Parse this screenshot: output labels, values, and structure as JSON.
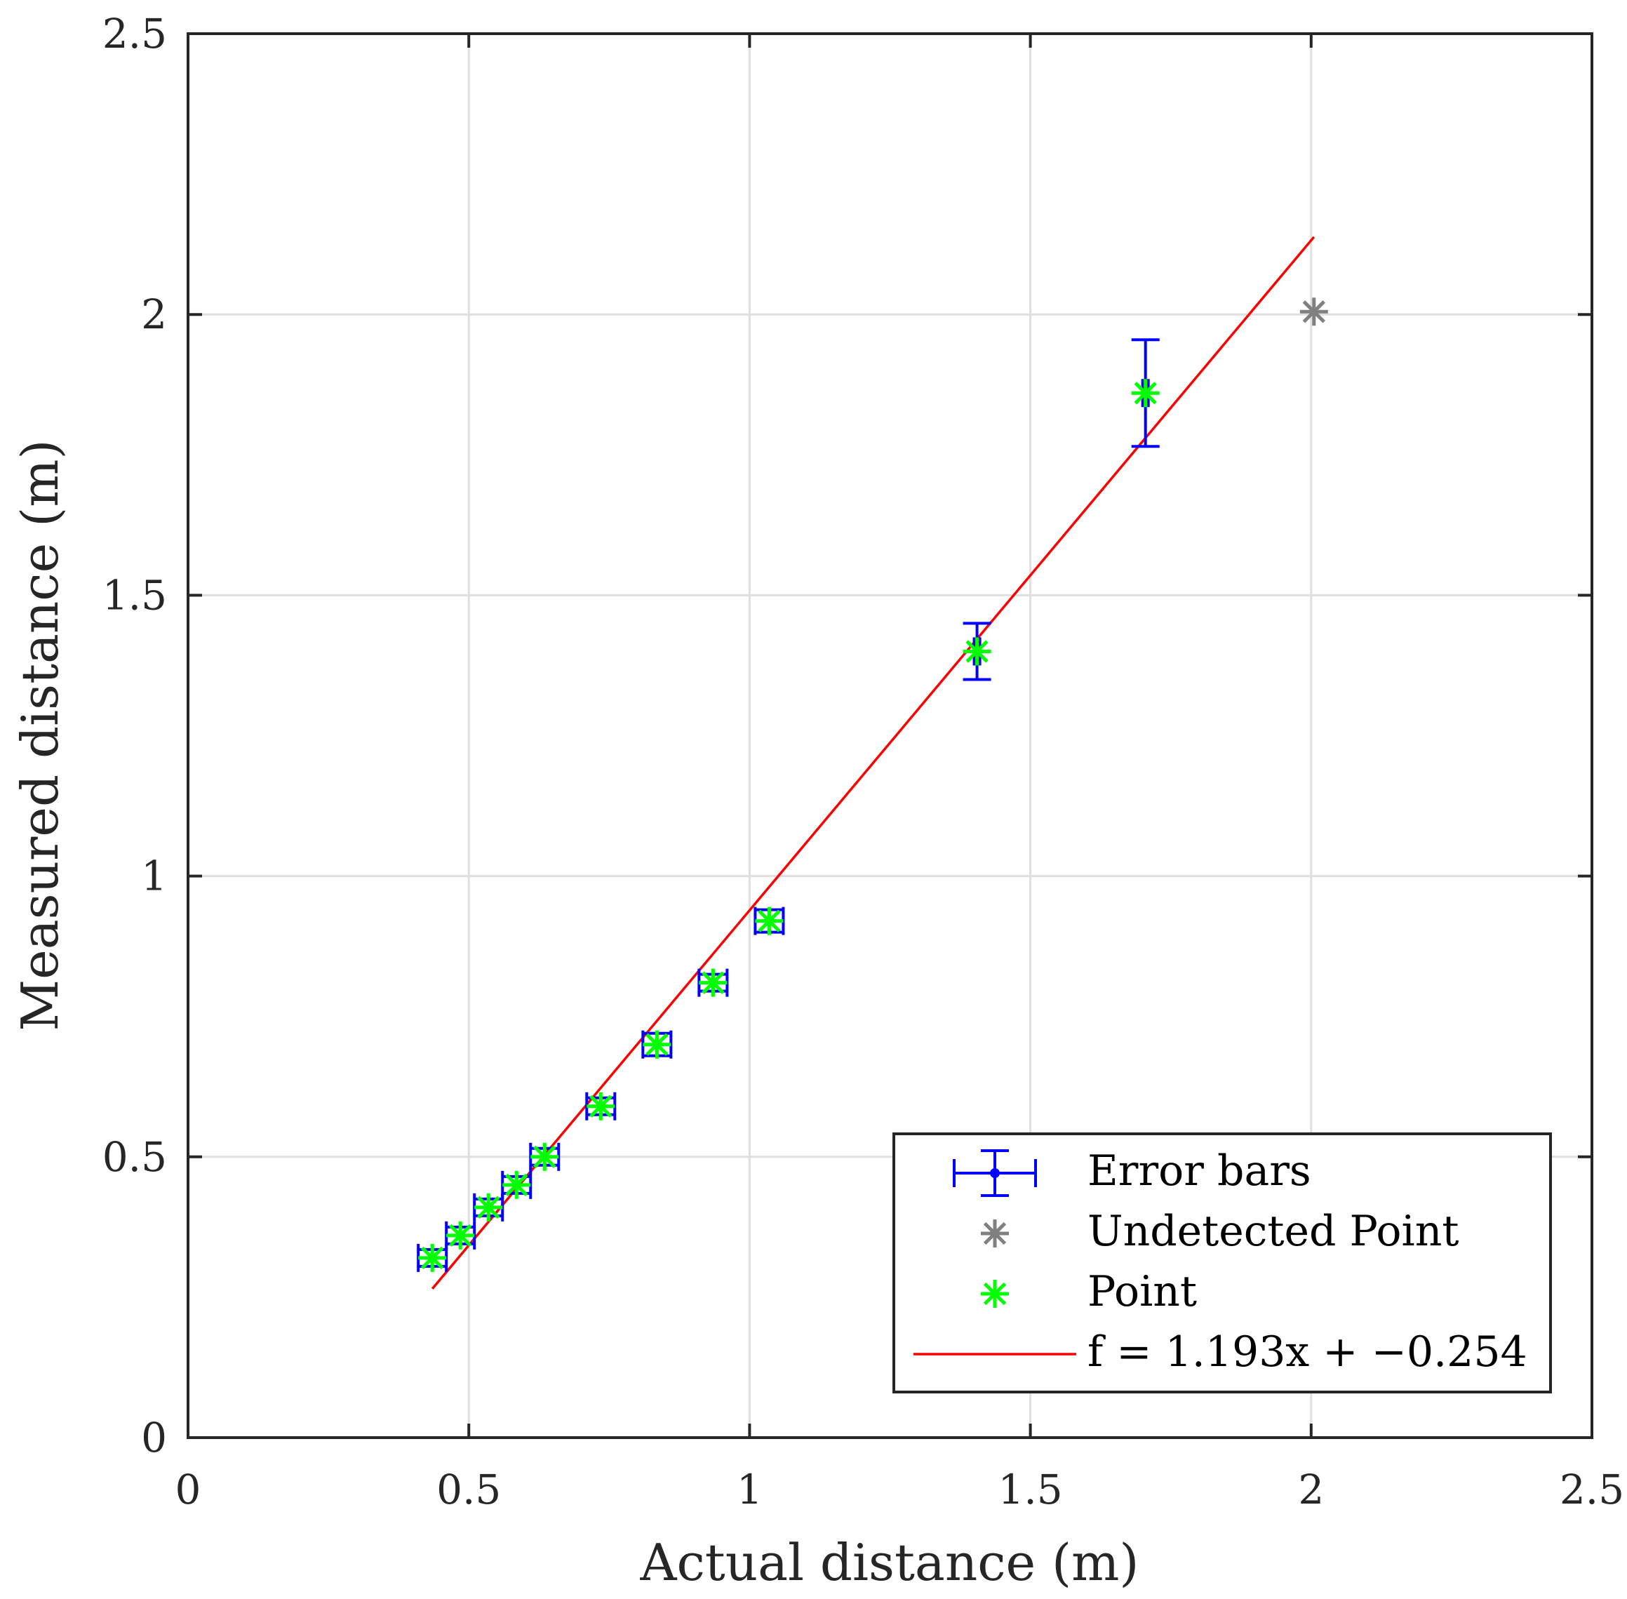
{
  "chart_data": {
    "type": "scatter",
    "xlabel": "Actual distance (m)",
    "ylabel": "Measured distance (m)",
    "xlim": [
      0,
      2.5
    ],
    "ylim": [
      0,
      2.5
    ],
    "grid": true,
    "x_ticks": [
      "0",
      "0.5",
      "1",
      "1.5",
      "2",
      "2.5"
    ],
    "y_ticks": [
      "0",
      "0.5",
      "1",
      "1.5",
      "2",
      "2.5"
    ],
    "legend_position": "bottom-right",
    "series": [
      {
        "name": "Error bars",
        "kind": "errorbar",
        "color": "#0000ff",
        "x": [
          0.435,
          0.485,
          0.535,
          0.585,
          0.635,
          0.735,
          0.835,
          0.935,
          1.035,
          1.405,
          1.705
        ],
        "y": [
          0.32,
          0.36,
          0.41,
          0.45,
          0.5,
          0.59,
          0.7,
          0.81,
          0.92,
          1.4,
          1.86
        ],
        "x_err": [
          0.025,
          0.025,
          0.025,
          0.025,
          0.025,
          0.025,
          0.025,
          0.025,
          0.025,
          0.005,
          0.005
        ],
        "y_err": [
          0.015,
          0.015,
          0.015,
          0.015,
          0.015,
          0.015,
          0.02,
          0.015,
          0.02,
          0.05,
          0.095
        ]
      },
      {
        "name": "Undetected Point",
        "kind": "marker",
        "color": "#808080",
        "x": [
          2.005
        ],
        "y": [
          2.005
        ]
      },
      {
        "name": "Point",
        "kind": "marker",
        "color": "#00ff00",
        "x": [
          0.435,
          0.485,
          0.535,
          0.585,
          0.635,
          0.735,
          0.835,
          0.935,
          1.035,
          1.405,
          1.705
        ],
        "y": [
          0.32,
          0.36,
          0.41,
          0.45,
          0.5,
          0.59,
          0.7,
          0.81,
          0.92,
          1.4,
          1.86
        ]
      },
      {
        "name": "f = 1.193x + −0.254",
        "kind": "line",
        "color": "#ff0000",
        "slope": 1.193,
        "intercept": -0.254,
        "x_range": [
          0.435,
          2.005
        ]
      }
    ]
  }
}
